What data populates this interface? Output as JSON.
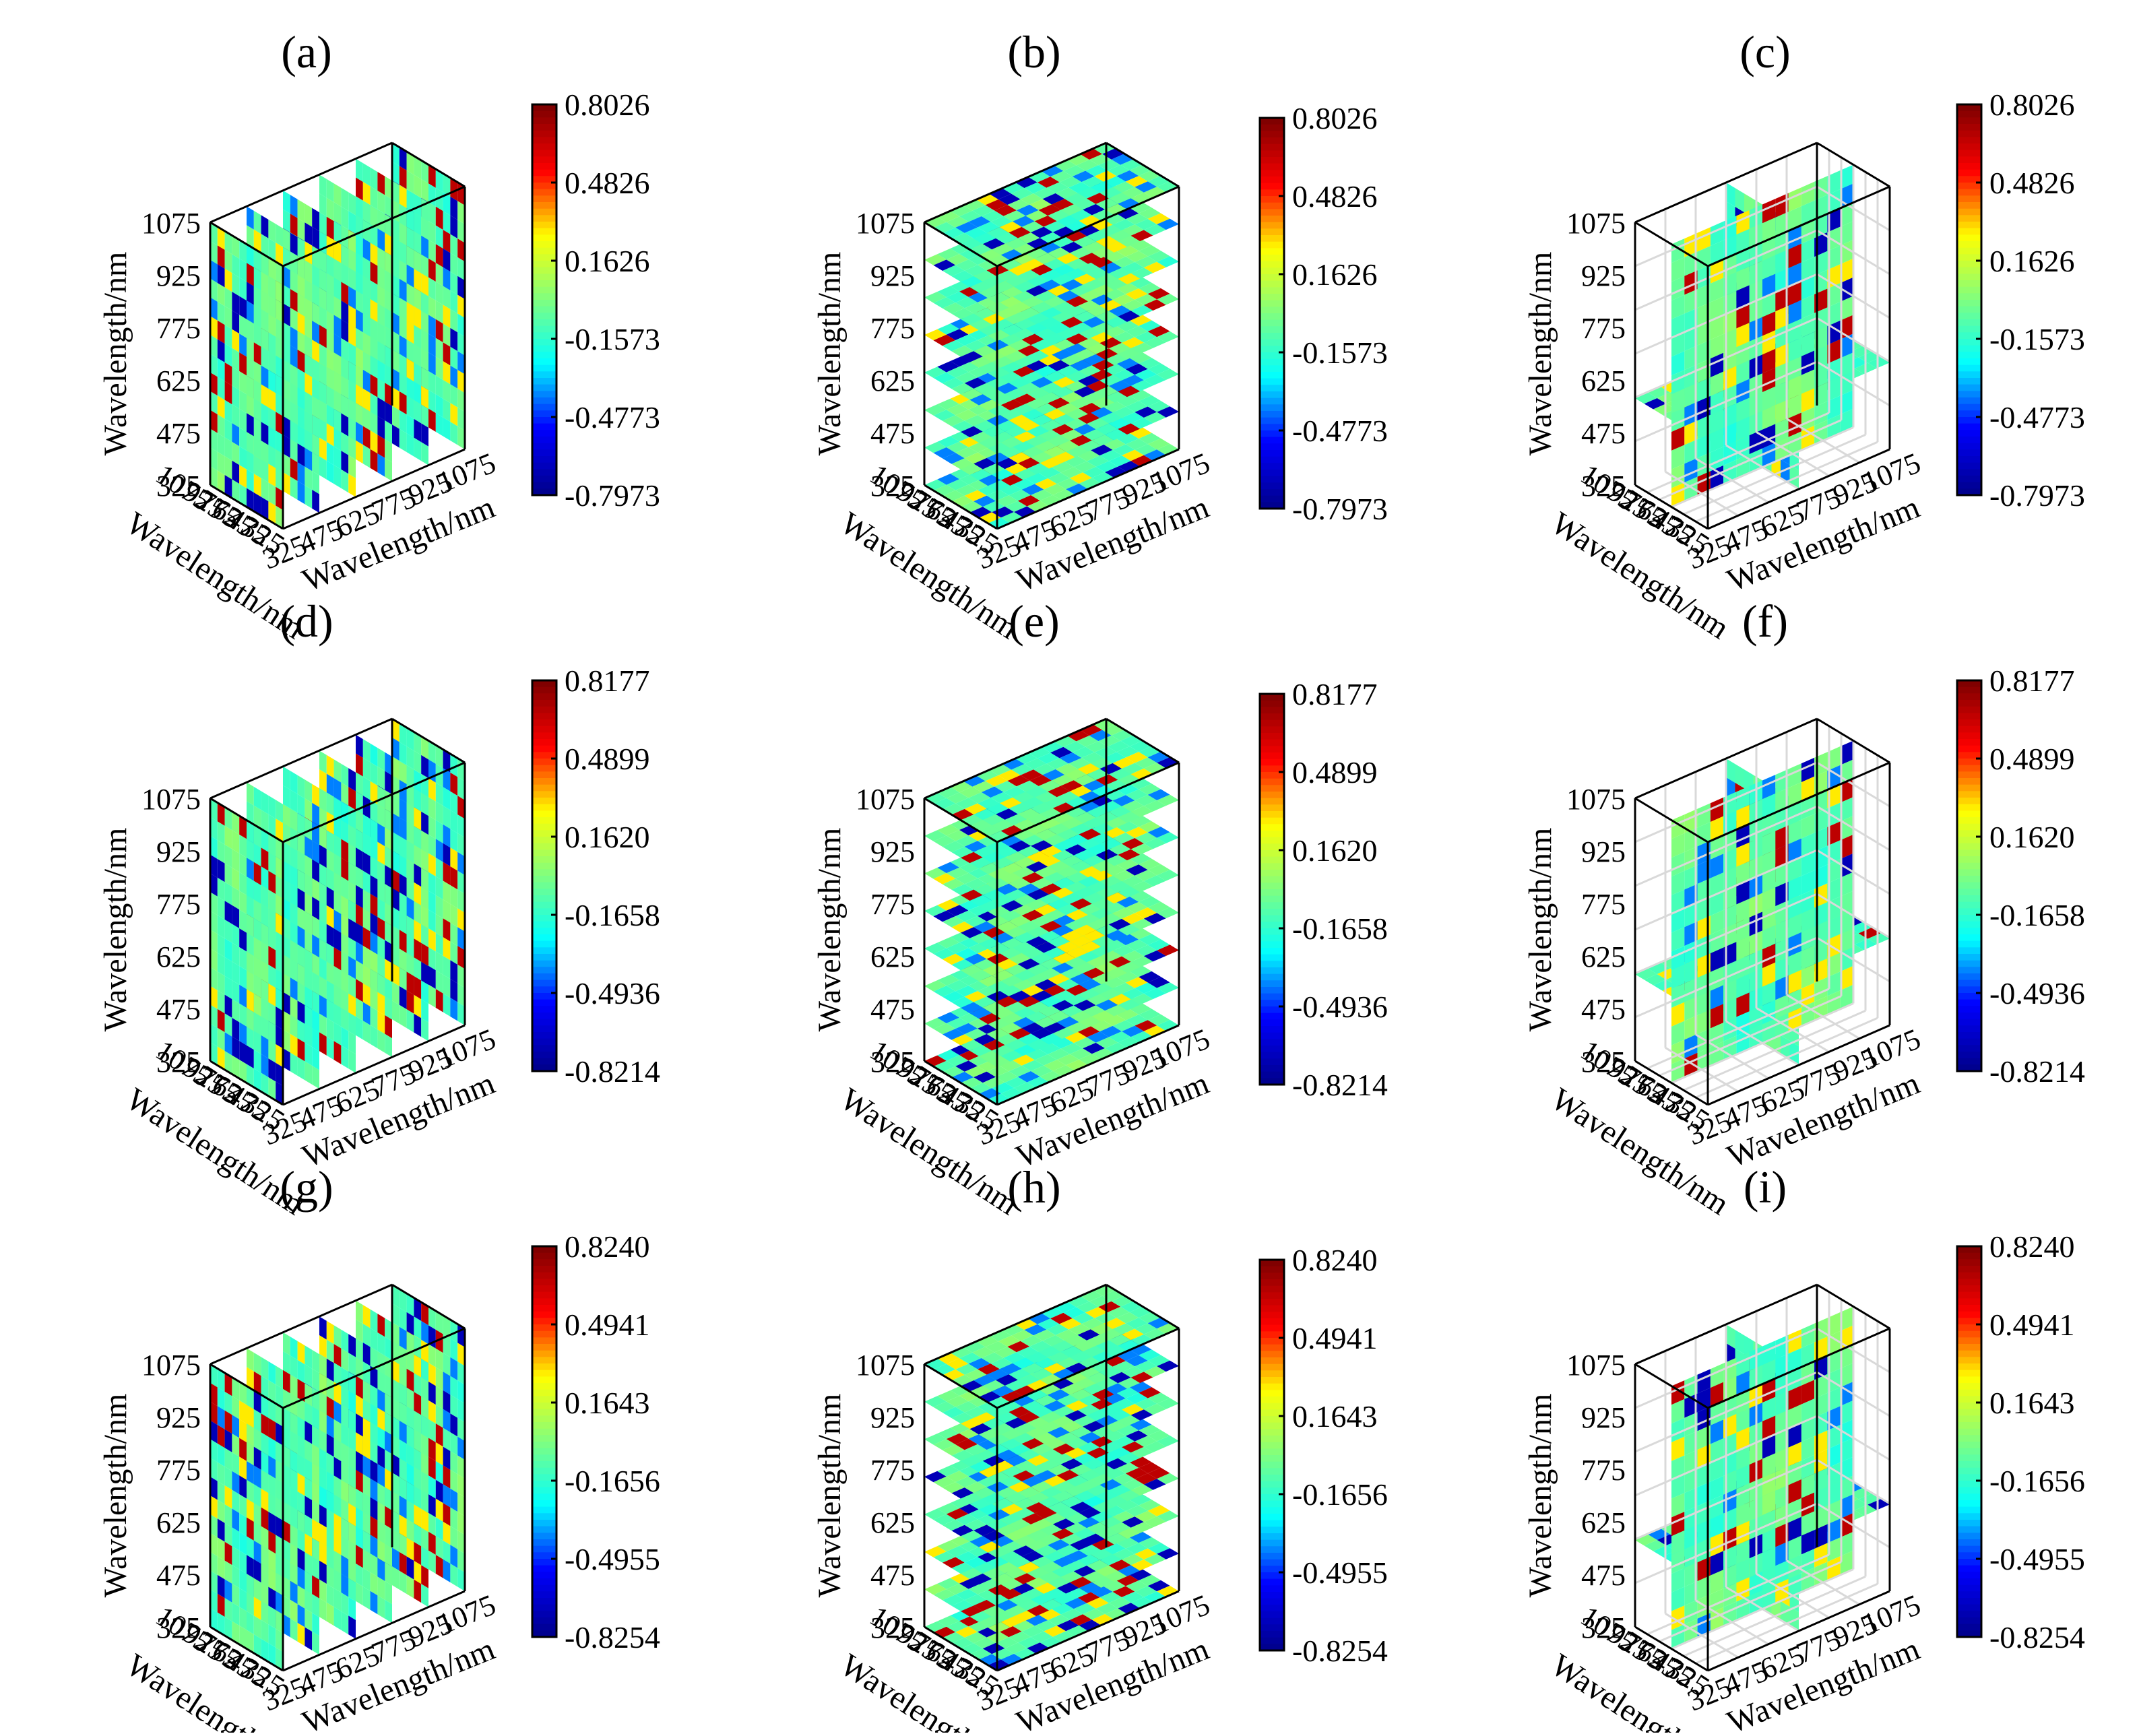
{
  "figure": {
    "grid": "3x3",
    "colormap": "jet",
    "colormap_stops": [
      "#00008f",
      "#0000ff",
      "#00ffff",
      "#7fff7f",
      "#ffff00",
      "#ff0000",
      "#800000"
    ],
    "frame_color": "#000000",
    "gridline_color": "#d9d9d9"
  },
  "chart_data": [
    {
      "panel": "(a)",
      "type": "heatmap",
      "view": "x-slices",
      "axis_ticks": [
        "325",
        "475",
        "625",
        "775",
        "925",
        "1075"
      ],
      "xlabel": "Wavelength/nm",
      "ylabel": "Wavelength/nm",
      "zlabel": "Wavelength/nm",
      "xlim": [
        325,
        1075
      ],
      "ylim": [
        325,
        1075
      ],
      "zlim": [
        325,
        1075
      ],
      "colorbar_ticks": [
        "0.8026",
        "0.4826",
        "0.1626",
        "-0.1573",
        "-0.4773",
        "-0.7973"
      ],
      "clim": [
        -0.7973,
        0.8026
      ],
      "grid": false
    },
    {
      "panel": "(b)",
      "type": "heatmap",
      "view": "z-slices",
      "axis_ticks": [
        "325",
        "475",
        "625",
        "775",
        "925",
        "1075"
      ],
      "xlabel": "Wavelength/nm",
      "ylabel": "Wavelength/nm",
      "zlabel": "Wavelength/nm",
      "xlim": [
        325,
        1075
      ],
      "ylim": [
        325,
        1075
      ],
      "zlim": [
        325,
        1075
      ],
      "colorbar_ticks": [
        "0.8026",
        "0.4826",
        "0.1626",
        "-0.1573",
        "-0.4773",
        "-0.7973"
      ],
      "clim": [
        -0.7973,
        0.8026
      ],
      "grid": false
    },
    {
      "panel": "(c)",
      "type": "heatmap",
      "view": "orthogonal-slices",
      "axis_ticks": [
        "325",
        "475",
        "625",
        "775",
        "925",
        "1075"
      ],
      "xlabel": "Wavelength/nm",
      "ylabel": "Wavelength/nm",
      "zlabel": "Wavelength/nm",
      "xlim": [
        325,
        1075
      ],
      "ylim": [
        325,
        1075
      ],
      "zlim": [
        325,
        1075
      ],
      "colorbar_ticks": [
        "0.8026",
        "0.4826",
        "0.1626",
        "-0.1573",
        "-0.4773",
        "-0.7973"
      ],
      "clim": [
        -0.7973,
        0.8026
      ],
      "grid": true
    },
    {
      "panel": "(d)",
      "type": "heatmap",
      "view": "x-slices",
      "axis_ticks": [
        "325",
        "475",
        "625",
        "775",
        "925",
        "1075"
      ],
      "xlabel": "Wavelength/nm",
      "ylabel": "Wavelength/nm",
      "zlabel": "Wavelength/nm",
      "xlim": [
        325,
        1075
      ],
      "ylim": [
        325,
        1075
      ],
      "zlim": [
        325,
        1075
      ],
      "colorbar_ticks": [
        "0.8177",
        "0.4899",
        "0.1620",
        "-0.1658",
        "-0.4936",
        "-0.8214"
      ],
      "clim": [
        -0.8214,
        0.8177
      ],
      "grid": false
    },
    {
      "panel": "(e)",
      "type": "heatmap",
      "view": "z-slices",
      "axis_ticks": [
        "325",
        "475",
        "625",
        "775",
        "925",
        "1075"
      ],
      "xlabel": "Wavelength/nm",
      "ylabel": "Wavelength/nm",
      "zlabel": "Wavelength/nm",
      "xlim": [
        325,
        1075
      ],
      "ylim": [
        325,
        1075
      ],
      "zlim": [
        325,
        1075
      ],
      "colorbar_ticks": [
        "0.8177",
        "0.4899",
        "0.1620",
        "-0.1658",
        "-0.4936",
        "-0.8214"
      ],
      "clim": [
        -0.8214,
        0.8177
      ],
      "grid": false
    },
    {
      "panel": "(f)",
      "type": "heatmap",
      "view": "orthogonal-slices",
      "axis_ticks": [
        "325",
        "475",
        "625",
        "775",
        "925",
        "1075"
      ],
      "xlabel": "Wavelength/nm",
      "ylabel": "Wavelength/nm",
      "zlabel": "Wavelength/nm",
      "xlim": [
        325,
        1075
      ],
      "ylim": [
        325,
        1075
      ],
      "zlim": [
        325,
        1075
      ],
      "colorbar_ticks": [
        "0.8177",
        "0.4899",
        "0.1620",
        "-0.1658",
        "-0.4936",
        "-0.8214"
      ],
      "clim": [
        -0.8214,
        0.8177
      ],
      "grid": true
    },
    {
      "panel": "(g)",
      "type": "heatmap",
      "view": "x-slices",
      "axis_ticks": [
        "325",
        "475",
        "625",
        "775",
        "925",
        "1075"
      ],
      "xlabel": "Wavelength/nm",
      "ylabel": "Wavelength/nm",
      "zlabel": "Wavelength/nm",
      "xlim": [
        325,
        1075
      ],
      "ylim": [
        325,
        1075
      ],
      "zlim": [
        325,
        1075
      ],
      "colorbar_ticks": [
        "0.8240",
        "0.4941",
        "0.1643",
        "-0.1656",
        "-0.4955",
        "-0.8254"
      ],
      "clim": [
        -0.8254,
        0.824
      ],
      "grid": false
    },
    {
      "panel": "(h)",
      "type": "heatmap",
      "view": "z-slices",
      "axis_ticks": [
        "325",
        "475",
        "625",
        "775",
        "925",
        "1075"
      ],
      "xlabel": "Wavelength/nm",
      "ylabel": "Wavelength/nm",
      "zlabel": "Wavelength/nm",
      "xlim": [
        325,
        1075
      ],
      "ylim": [
        325,
        1075
      ],
      "zlim": [
        325,
        1075
      ],
      "colorbar_ticks": [
        "0.8240",
        "0.4941",
        "0.1643",
        "-0.1656",
        "-0.4955",
        "-0.8254"
      ],
      "clim": [
        -0.8254,
        0.824
      ],
      "grid": false
    },
    {
      "panel": "(i)",
      "type": "heatmap",
      "view": "orthogonal-slices",
      "axis_ticks": [
        "325",
        "475",
        "625",
        "775",
        "925",
        "1075"
      ],
      "xlabel": "Wavelength/nm",
      "ylabel": "Wavelength/nm",
      "zlabel": "Wavelength/nm",
      "xlim": [
        325,
        1075
      ],
      "ylim": [
        325,
        1075
      ],
      "zlim": [
        325,
        1075
      ],
      "colorbar_ticks": [
        "0.8240",
        "0.4941",
        "0.1643",
        "-0.1656",
        "-0.4955",
        "-0.8254"
      ],
      "clim": [
        -0.8254,
        0.824
      ],
      "grid": true
    }
  ]
}
